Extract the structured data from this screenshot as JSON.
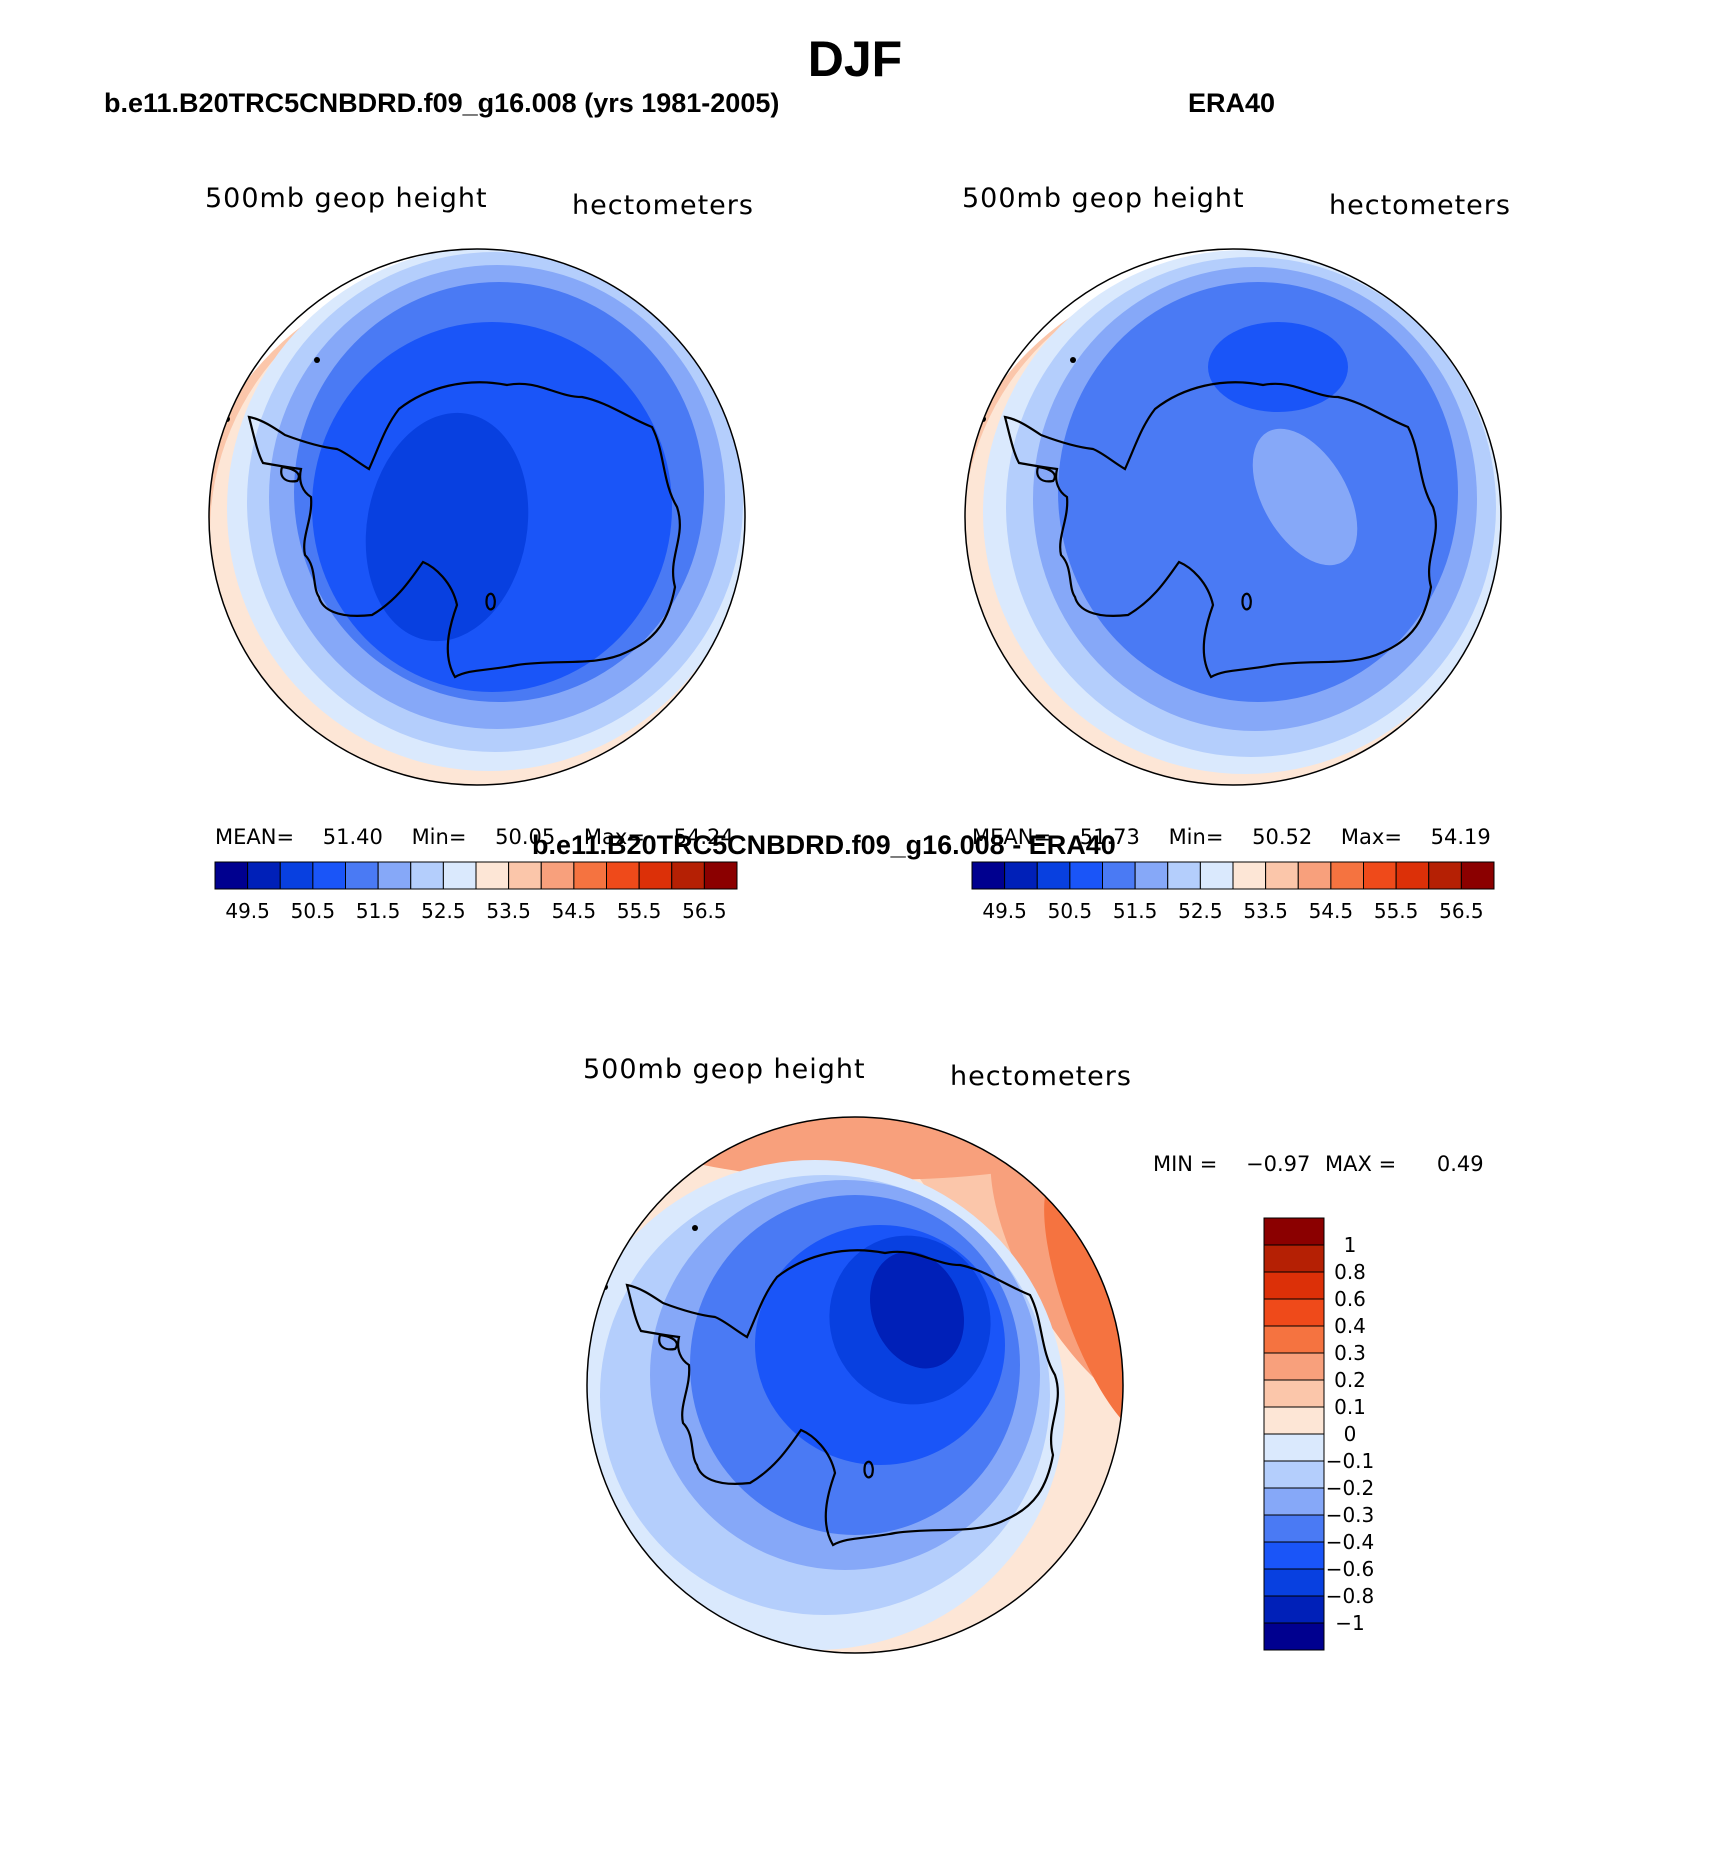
{
  "figure": {
    "title": "DJF",
    "field_label": "500mb geop height",
    "units_label": "hectometers"
  },
  "colors": {
    "palette": [
      "#00008f",
      "#0020b8",
      "#0840e0",
      "#1a55f8",
      "#4a7af4",
      "#86a8f8",
      "#b4cefc",
      "#dae9fd",
      "#fde6d6",
      "#fbc6aa",
      "#f8a07c",
      "#f57340",
      "#ef4a1a",
      "#dc3008",
      "#b52004",
      "#8b0000"
    ],
    "continent_outline": "#000000"
  },
  "panels": [
    {
      "title": "b.e11.B20TRC5CNBDRD.f09_g16.008 (yrs 1981-2005)",
      "stats": {
        "mean_label": "MEAN=",
        "mean": "51.40",
        "min_label": "Min=",
        "min": "50.05",
        "max_label": "Max=",
        "max": "54.24"
      },
      "colorbar_labels": [
        "49.5",
        "50.5",
        "51.5",
        "52.5",
        "53.5",
        "54.5",
        "55.5",
        "56.5"
      ]
    },
    {
      "title": "ERA40",
      "stats": {
        "mean_label": "MEAN=",
        "mean": "51.73",
        "min_label": "Min=",
        "min": "50.52",
        "max_label": "Max=",
        "max": "54.19"
      },
      "colorbar_labels": [
        "49.5",
        "50.5",
        "51.5",
        "52.5",
        "53.5",
        "54.5",
        "55.5",
        "56.5"
      ]
    },
    {
      "title": "b.e11.B20TRC5CNBDRD.f09_g16.008 - ERA40",
      "stats": {
        "min_label": "MIN =",
        "min": "−0.97",
        "max_label": "MAX =",
        "max": "0.49"
      },
      "colorbar_labels": [
        "1",
        "0.8",
        "0.6",
        "0.4",
        "0.3",
        "0.2",
        "0.1",
        "0",
        "−0.1",
        "−0.2",
        "−0.3",
        "−0.4",
        "−0.6",
        "−0.8",
        "−1"
      ]
    }
  ]
}
